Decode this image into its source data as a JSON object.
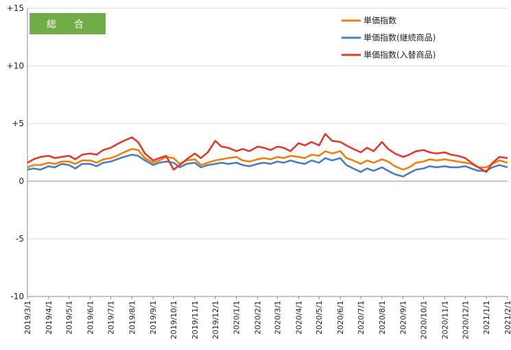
{
  "chart_data": {
    "type": "line",
    "badge": "総　合",
    "badge_color": "#70ad47",
    "ylim": [
      -10,
      15
    ],
    "yticks": [
      {
        "value": 15,
        "label": "+15"
      },
      {
        "value": 10,
        "label": "+10"
      },
      {
        "value": 5,
        "label": "+5"
      },
      {
        "value": 0,
        "label": "0"
      },
      {
        "value": -5,
        "label": "-5"
      },
      {
        "value": -10,
        "label": "-10"
      }
    ],
    "xticks": [
      "2019/3/1",
      "2019/4/1",
      "2019/5/1",
      "2019/6/1",
      "2019/7/1",
      "2019/8/1",
      "2019/9/1",
      "2019/10/1",
      "2019/11/1",
      "2019/12/1",
      "2020/1/1",
      "2020/2/1",
      "2020/3/1",
      "2020/4/1",
      "2020/5/1",
      "2020/6/1",
      "2020/7/1",
      "2020/8/1",
      "2020/9/1",
      "2020/10/1",
      "2020/11/1",
      "2020/12/1",
      "2021/1/1",
      "2021/2/1"
    ],
    "x_start": "2019/3/1",
    "x_end": "2021/2/1",
    "series": [
      {
        "name": "単価指数",
        "color": "#f07f09",
        "points": [
          [
            "2019/3/1",
            1.2
          ],
          [
            "2019/3/10",
            1.4
          ],
          [
            "2019/3/20",
            1.4
          ],
          [
            "2019/4/1",
            1.6
          ],
          [
            "2019/4/10",
            1.5
          ],
          [
            "2019/4/20",
            1.7
          ],
          [
            "2019/5/1",
            1.7
          ],
          [
            "2019/5/10",
            1.5
          ],
          [
            "2019/5/20",
            1.8
          ],
          [
            "2019/6/1",
            1.8
          ],
          [
            "2019/6/10",
            1.6
          ],
          [
            "2019/6/20",
            1.9
          ],
          [
            "2019/7/1",
            2.0
          ],
          [
            "2019/7/10",
            2.2
          ],
          [
            "2019/7/20",
            2.5
          ],
          [
            "2019/8/1",
            2.8
          ],
          [
            "2019/8/10",
            2.7
          ],
          [
            "2019/8/20",
            2.0
          ],
          [
            "2019/9/1",
            1.6
          ],
          [
            "2019/9/10",
            1.8
          ],
          [
            "2019/9/20",
            2.1
          ],
          [
            "2019/10/1",
            2.0
          ],
          [
            "2019/10/10",
            1.5
          ],
          [
            "2019/10/20",
            1.8
          ],
          [
            "2019/11/1",
            1.9
          ],
          [
            "2019/11/10",
            1.4
          ],
          [
            "2019/11/20",
            1.6
          ],
          [
            "2019/12/1",
            1.8
          ],
          [
            "2019/12/10",
            1.9
          ],
          [
            "2019/12/20",
            2.0
          ],
          [
            "2020/1/1",
            2.1
          ],
          [
            "2020/1/10",
            1.8
          ],
          [
            "2020/1/20",
            1.7
          ],
          [
            "2020/2/1",
            1.9
          ],
          [
            "2020/2/10",
            2.0
          ],
          [
            "2020/2/20",
            1.9
          ],
          [
            "2020/3/1",
            2.1
          ],
          [
            "2020/3/10",
            2.0
          ],
          [
            "2020/3/20",
            2.2
          ],
          [
            "2020/4/1",
            2.1
          ],
          [
            "2020/4/10",
            2.0
          ],
          [
            "2020/4/20",
            2.3
          ],
          [
            "2020/5/1",
            2.2
          ],
          [
            "2020/5/10",
            2.6
          ],
          [
            "2020/5/20",
            2.4
          ],
          [
            "2020/6/1",
            2.6
          ],
          [
            "2020/6/10",
            2.0
          ],
          [
            "2020/6/20",
            1.8
          ],
          [
            "2020/7/1",
            1.5
          ],
          [
            "2020/7/10",
            1.8
          ],
          [
            "2020/7/20",
            1.6
          ],
          [
            "2020/8/1",
            1.9
          ],
          [
            "2020/8/10",
            1.7
          ],
          [
            "2020/8/20",
            1.3
          ],
          [
            "2020/9/1",
            1.0
          ],
          [
            "2020/9/10",
            1.2
          ],
          [
            "2020/9/20",
            1.6
          ],
          [
            "2020/10/1",
            1.7
          ],
          [
            "2020/10/10",
            1.9
          ],
          [
            "2020/10/20",
            1.8
          ],
          [
            "2020/11/1",
            1.9
          ],
          [
            "2020/11/10",
            1.8
          ],
          [
            "2020/11/20",
            1.7
          ],
          [
            "2020/12/1",
            1.6
          ],
          [
            "2020/12/10",
            1.5
          ],
          [
            "2020/12/20",
            1.2
          ],
          [
            "2021/1/1",
            1.2
          ],
          [
            "2021/1/10",
            1.5
          ],
          [
            "2021/1/20",
            1.8
          ],
          [
            "2021/2/1",
            1.6
          ]
        ]
      },
      {
        "name": "単価指数(継続商品)",
        "color": "#4a7ebb",
        "points": [
          [
            "2019/3/1",
            1.0
          ],
          [
            "2019/3/10",
            1.1
          ],
          [
            "2019/3/20",
            1.0
          ],
          [
            "2019/4/1",
            1.3
          ],
          [
            "2019/4/10",
            1.2
          ],
          [
            "2019/4/20",
            1.5
          ],
          [
            "2019/5/1",
            1.4
          ],
          [
            "2019/5/10",
            1.1
          ],
          [
            "2019/5/20",
            1.5
          ],
          [
            "2019/6/1",
            1.5
          ],
          [
            "2019/6/10",
            1.3
          ],
          [
            "2019/6/20",
            1.6
          ],
          [
            "2019/7/1",
            1.7
          ],
          [
            "2019/7/10",
            1.9
          ],
          [
            "2019/7/20",
            2.1
          ],
          [
            "2019/8/1",
            2.3
          ],
          [
            "2019/8/10",
            2.2
          ],
          [
            "2019/8/20",
            1.8
          ],
          [
            "2019/9/1",
            1.4
          ],
          [
            "2019/9/10",
            1.6
          ],
          [
            "2019/9/20",
            1.7
          ],
          [
            "2019/10/1",
            1.6
          ],
          [
            "2019/10/10",
            1.2
          ],
          [
            "2019/10/20",
            1.5
          ],
          [
            "2019/11/1",
            1.6
          ],
          [
            "2019/11/10",
            1.2
          ],
          [
            "2019/11/20",
            1.4
          ],
          [
            "2019/12/1",
            1.5
          ],
          [
            "2019/12/10",
            1.6
          ],
          [
            "2019/12/20",
            1.5
          ],
          [
            "2020/1/1",
            1.6
          ],
          [
            "2020/1/10",
            1.4
          ],
          [
            "2020/1/20",
            1.3
          ],
          [
            "2020/2/1",
            1.5
          ],
          [
            "2020/2/10",
            1.6
          ],
          [
            "2020/2/20",
            1.5
          ],
          [
            "2020/3/1",
            1.7
          ],
          [
            "2020/3/10",
            1.6
          ],
          [
            "2020/3/20",
            1.8
          ],
          [
            "2020/4/1",
            1.6
          ],
          [
            "2020/4/10",
            1.5
          ],
          [
            "2020/4/20",
            1.8
          ],
          [
            "2020/5/1",
            1.6
          ],
          [
            "2020/5/10",
            2.0
          ],
          [
            "2020/5/20",
            1.8
          ],
          [
            "2020/6/1",
            2.0
          ],
          [
            "2020/6/10",
            1.4
          ],
          [
            "2020/6/20",
            1.1
          ],
          [
            "2020/7/1",
            0.8
          ],
          [
            "2020/7/10",
            1.1
          ],
          [
            "2020/7/20",
            0.9
          ],
          [
            "2020/8/1",
            1.2
          ],
          [
            "2020/8/10",
            0.9
          ],
          [
            "2020/8/20",
            0.6
          ],
          [
            "2020/9/1",
            0.4
          ],
          [
            "2020/9/10",
            0.7
          ],
          [
            "2020/9/20",
            1.0
          ],
          [
            "2020/10/1",
            1.1
          ],
          [
            "2020/10/10",
            1.3
          ],
          [
            "2020/10/20",
            1.2
          ],
          [
            "2020/11/1",
            1.3
          ],
          [
            "2020/11/10",
            1.2
          ],
          [
            "2020/11/20",
            1.2
          ],
          [
            "2020/12/1",
            1.3
          ],
          [
            "2020/12/10",
            1.1
          ],
          [
            "2020/12/20",
            0.9
          ],
          [
            "2021/1/1",
            0.9
          ],
          [
            "2021/1/10",
            1.2
          ],
          [
            "2021/1/20",
            1.4
          ],
          [
            "2021/2/1",
            1.2
          ]
        ]
      },
      {
        "name": "単価指数(入替商品)",
        "color": "#e03a2e",
        "points": [
          [
            "2019/3/1",
            1.6
          ],
          [
            "2019/3/10",
            1.9
          ],
          [
            "2019/3/20",
            2.1
          ],
          [
            "2019/4/1",
            2.2
          ],
          [
            "2019/4/10",
            2.0
          ],
          [
            "2019/4/20",
            2.1
          ],
          [
            "2019/5/1",
            2.2
          ],
          [
            "2019/5/10",
            1.9
          ],
          [
            "2019/5/20",
            2.3
          ],
          [
            "2019/6/1",
            2.4
          ],
          [
            "2019/6/10",
            2.3
          ],
          [
            "2019/6/20",
            2.7
          ],
          [
            "2019/7/1",
            2.9
          ],
          [
            "2019/7/10",
            3.2
          ],
          [
            "2019/7/20",
            3.5
          ],
          [
            "2019/8/1",
            3.8
          ],
          [
            "2019/8/10",
            3.4
          ],
          [
            "2019/8/20",
            2.4
          ],
          [
            "2019/9/1",
            1.8
          ],
          [
            "2019/9/10",
            2.0
          ],
          [
            "2019/9/20",
            2.2
          ],
          [
            "2019/10/1",
            1.0
          ],
          [
            "2019/10/10",
            1.4
          ],
          [
            "2019/10/20",
            1.9
          ],
          [
            "2019/11/1",
            2.4
          ],
          [
            "2019/11/10",
            2.0
          ],
          [
            "2019/11/20",
            2.5
          ],
          [
            "2019/12/1",
            3.5
          ],
          [
            "2019/12/10",
            3.0
          ],
          [
            "2019/12/20",
            2.9
          ],
          [
            "2020/1/1",
            2.6
          ],
          [
            "2020/1/10",
            2.8
          ],
          [
            "2020/1/20",
            2.6
          ],
          [
            "2020/2/1",
            3.0
          ],
          [
            "2020/2/10",
            2.9
          ],
          [
            "2020/2/20",
            2.7
          ],
          [
            "2020/3/1",
            3.0
          ],
          [
            "2020/3/10",
            2.9
          ],
          [
            "2020/3/20",
            2.6
          ],
          [
            "2020/4/1",
            3.3
          ],
          [
            "2020/4/10",
            3.1
          ],
          [
            "2020/4/20",
            3.4
          ],
          [
            "2020/5/1",
            3.1
          ],
          [
            "2020/5/10",
            4.1
          ],
          [
            "2020/5/20",
            3.5
          ],
          [
            "2020/6/1",
            3.4
          ],
          [
            "2020/6/10",
            3.1
          ],
          [
            "2020/6/20",
            2.8
          ],
          [
            "2020/7/1",
            2.5
          ],
          [
            "2020/7/10",
            2.9
          ],
          [
            "2020/7/20",
            2.6
          ],
          [
            "2020/8/1",
            3.4
          ],
          [
            "2020/8/10",
            2.8
          ],
          [
            "2020/8/20",
            2.4
          ],
          [
            "2020/9/1",
            2.1
          ],
          [
            "2020/9/10",
            2.3
          ],
          [
            "2020/9/20",
            2.6
          ],
          [
            "2020/10/1",
            2.7
          ],
          [
            "2020/10/10",
            2.5
          ],
          [
            "2020/10/20",
            2.4
          ],
          [
            "2020/11/1",
            2.5
          ],
          [
            "2020/11/10",
            2.3
          ],
          [
            "2020/11/20",
            2.2
          ],
          [
            "2020/12/1",
            2.0
          ],
          [
            "2020/12/10",
            1.6
          ],
          [
            "2020/12/20",
            1.2
          ],
          [
            "2021/1/1",
            0.8
          ],
          [
            "2021/1/10",
            1.6
          ],
          [
            "2021/1/20",
            2.1
          ],
          [
            "2021/2/1",
            2.0
          ]
        ]
      }
    ]
  }
}
